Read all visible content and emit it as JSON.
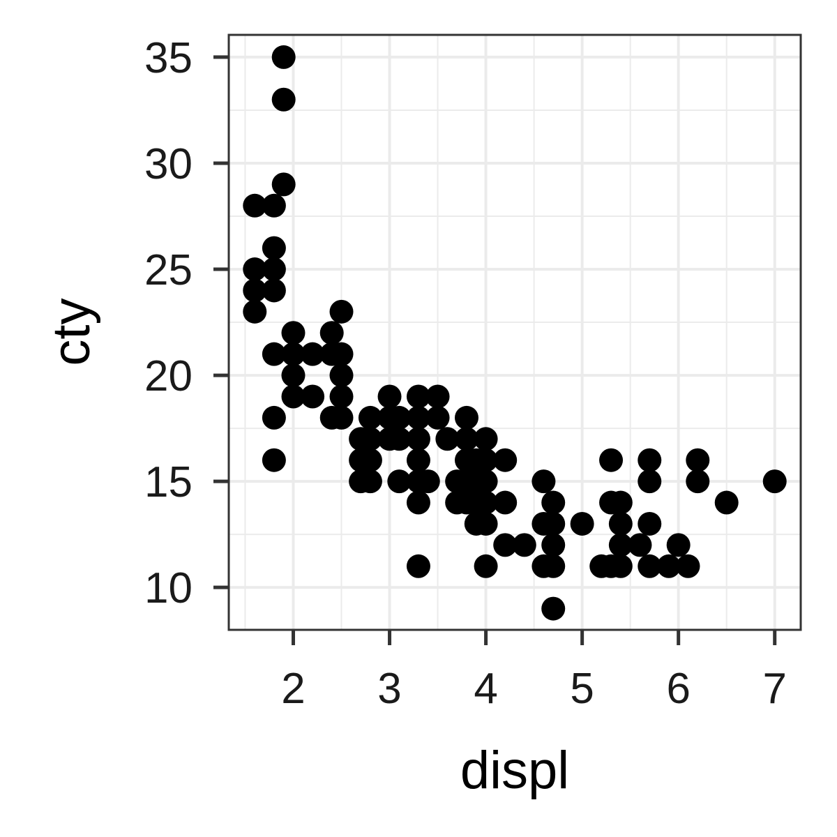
{
  "chart_data": {
    "type": "scatter",
    "title": "",
    "xlabel": "displ",
    "ylabel": "cty",
    "xlim": [
      1.33,
      7.27
    ],
    "ylim": [
      8.0,
      36.05
    ],
    "x_ticks": [
      2,
      3,
      4,
      5,
      6,
      7
    ],
    "y_ticks": [
      10,
      15,
      20,
      25,
      30,
      35
    ],
    "grid": true,
    "legend": "none",
    "colors": {
      "point": "#000000",
      "grid": "#ebebeb",
      "panel_border": "#333333",
      "background": "#ffffff"
    },
    "points": [
      [
        1.6,
        23
      ],
      [
        1.6,
        24
      ],
      [
        1.6,
        25
      ],
      [
        1.6,
        28
      ],
      [
        1.8,
        28
      ],
      [
        1.8,
        26
      ],
      [
        1.8,
        25
      ],
      [
        1.8,
        24
      ],
      [
        1.8,
        21
      ],
      [
        1.8,
        18
      ],
      [
        1.8,
        16
      ],
      [
        1.9,
        35
      ],
      [
        1.9,
        33
      ],
      [
        1.9,
        29
      ],
      [
        2.0,
        22
      ],
      [
        2.0,
        21
      ],
      [
        2.0,
        20
      ],
      [
        2.0,
        19
      ],
      [
        2.2,
        21
      ],
      [
        2.2,
        19
      ],
      [
        2.4,
        22
      ],
      [
        2.4,
        21
      ],
      [
        2.4,
        18
      ],
      [
        2.5,
        23
      ],
      [
        2.5,
        21
      ],
      [
        2.5,
        20
      ],
      [
        2.5,
        19
      ],
      [
        2.5,
        18
      ],
      [
        2.7,
        17
      ],
      [
        2.7,
        16
      ],
      [
        2.7,
        15
      ],
      [
        2.8,
        18
      ],
      [
        2.8,
        17
      ],
      [
        2.8,
        16
      ],
      [
        2.8,
        15
      ],
      [
        3.0,
        19
      ],
      [
        3.0,
        18
      ],
      [
        3.0,
        17
      ],
      [
        3.1,
        18
      ],
      [
        3.1,
        17
      ],
      [
        3.1,
        15
      ],
      [
        3.3,
        19
      ],
      [
        3.3,
        18
      ],
      [
        3.3,
        17
      ],
      [
        3.3,
        16
      ],
      [
        3.3,
        15
      ],
      [
        3.3,
        14
      ],
      [
        3.3,
        11
      ],
      [
        3.4,
        15
      ],
      [
        3.5,
        19
      ],
      [
        3.5,
        18
      ],
      [
        3.6,
        17
      ],
      [
        3.7,
        15
      ],
      [
        3.7,
        14
      ],
      [
        3.8,
        18
      ],
      [
        3.8,
        17
      ],
      [
        3.8,
        16
      ],
      [
        3.8,
        15
      ],
      [
        3.8,
        14
      ],
      [
        3.9,
        16
      ],
      [
        3.9,
        15
      ],
      [
        3.9,
        14
      ],
      [
        3.9,
        13
      ],
      [
        4.0,
        17
      ],
      [
        4.0,
        16
      ],
      [
        4.0,
        15
      ],
      [
        4.0,
        14
      ],
      [
        4.0,
        13
      ],
      [
        4.0,
        11
      ],
      [
        4.2,
        16
      ],
      [
        4.2,
        14
      ],
      [
        4.2,
        12
      ],
      [
        4.4,
        12
      ],
      [
        4.6,
        15
      ],
      [
        4.6,
        13
      ],
      [
        4.6,
        11
      ],
      [
        4.7,
        14
      ],
      [
        4.7,
        13
      ],
      [
        4.7,
        12
      ],
      [
        4.7,
        11
      ],
      [
        4.7,
        9
      ],
      [
        5.0,
        13
      ],
      [
        5.2,
        11
      ],
      [
        5.3,
        16
      ],
      [
        5.3,
        14
      ],
      [
        5.3,
        11
      ],
      [
        5.4,
        14
      ],
      [
        5.4,
        13
      ],
      [
        5.4,
        12
      ],
      [
        5.4,
        11
      ],
      [
        5.6,
        12
      ],
      [
        5.7,
        16
      ],
      [
        5.7,
        15
      ],
      [
        5.7,
        13
      ],
      [
        5.7,
        11
      ],
      [
        5.9,
        11
      ],
      [
        6.0,
        12
      ],
      [
        6.1,
        11
      ],
      [
        6.2,
        16
      ],
      [
        6.2,
        15
      ],
      [
        6.5,
        14
      ],
      [
        7.0,
        15
      ]
    ]
  }
}
